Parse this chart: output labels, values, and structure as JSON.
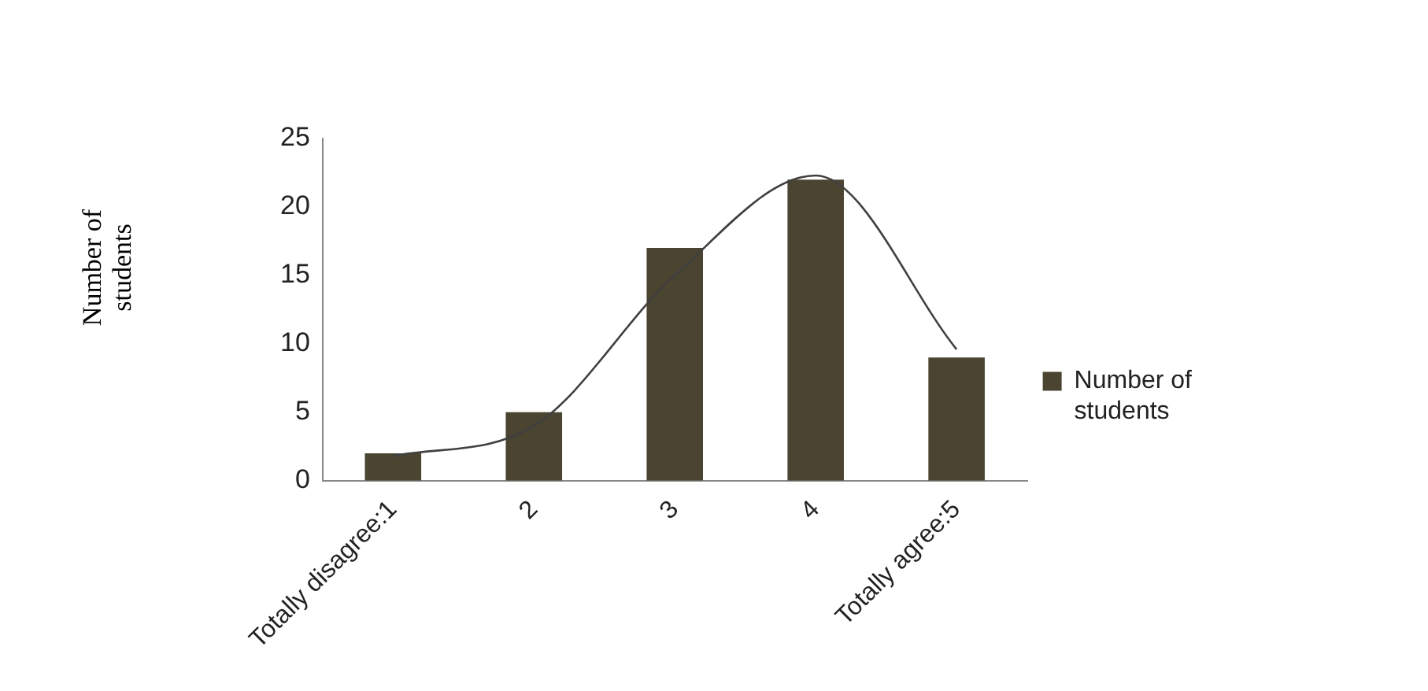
{
  "chart_data": {
    "type": "bar",
    "ylabel": "Number of students",
    "categories": [
      "Totally disagree:1",
      "2",
      "3",
      "4",
      "Totally agree:5"
    ],
    "series": [
      {
        "name": "Number of students",
        "color": "#4a4430",
        "values": [
          2,
          5,
          17,
          22,
          9
        ]
      },
      {
        "type": "line",
        "color": "#404040",
        "values": [
          1.8,
          4,
          15,
          22.3,
          9.6
        ]
      }
    ],
    "ylim": [
      0,
      25
    ],
    "yticks": [
      0,
      5,
      10,
      15,
      20,
      25
    ],
    "grid": false,
    "legend": "right",
    "marker": "none"
  }
}
